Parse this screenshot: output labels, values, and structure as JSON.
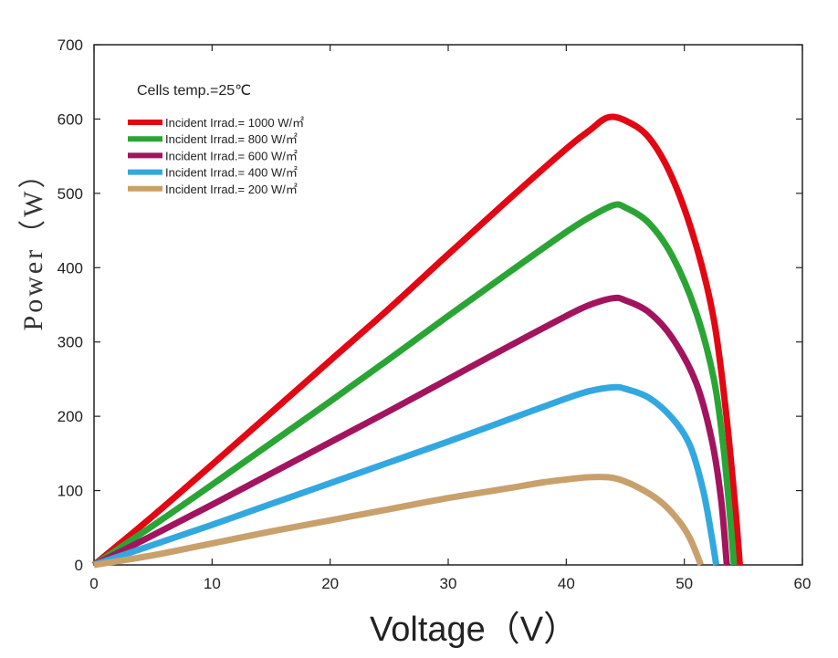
{
  "chart_data": {
    "type": "line",
    "xlabel": "Voltage（V）",
    "ylabel": "Power（W）",
    "xlim": [
      0,
      60
    ],
    "ylim": [
      0,
      700
    ],
    "xticks": [
      0,
      10,
      20,
      30,
      40,
      50,
      60
    ],
    "yticks": [
      0,
      100,
      200,
      300,
      400,
      500,
      600,
      700
    ],
    "grid": false,
    "legend_position": "top-left",
    "annotation": "Cells temp.=25℃",
    "series": [
      {
        "name": "Incident Irrad.= 1000 W/㎡",
        "color": "#e30613",
        "points": [
          [
            0,
            0
          ],
          [
            5,
            66
          ],
          [
            10,
            135
          ],
          [
            15,
            205
          ],
          [
            20,
            275
          ],
          [
            25,
            345
          ],
          [
            30,
            418
          ],
          [
            35,
            490
          ],
          [
            40,
            560
          ],
          [
            42,
            585
          ],
          [
            43.5,
            602
          ],
          [
            45,
            598
          ],
          [
            47,
            575
          ],
          [
            49,
            520
          ],
          [
            51,
            430
          ],
          [
            52.5,
            330
          ],
          [
            53.5,
            210
          ],
          [
            54.3,
            80
          ],
          [
            54.7,
            0
          ]
        ]
      },
      {
        "name": "Incident Irrad.= 800 W/㎡",
        "color": "#2aa535",
        "points": [
          [
            0,
            0
          ],
          [
            5,
            53
          ],
          [
            10,
            108
          ],
          [
            15,
            164
          ],
          [
            20,
            220
          ],
          [
            25,
            277
          ],
          [
            30,
            335
          ],
          [
            35,
            392
          ],
          [
            40,
            448
          ],
          [
            42,
            468
          ],
          [
            44,
            484
          ],
          [
            45,
            481
          ],
          [
            47,
            460
          ],
          [
            49,
            415
          ],
          [
            51,
            340
          ],
          [
            52.5,
            250
          ],
          [
            53.3,
            160
          ],
          [
            53.9,
            60
          ],
          [
            54.2,
            0
          ]
        ]
      },
      {
        "name": "Incident Irrad.= 600 W/㎡",
        "color": "#a3145e",
        "points": [
          [
            0,
            0
          ],
          [
            5,
            40
          ],
          [
            10,
            81
          ],
          [
            15,
            123
          ],
          [
            20,
            165
          ],
          [
            25,
            207
          ],
          [
            30,
            250
          ],
          [
            35,
            293
          ],
          [
            40,
            335
          ],
          [
            42,
            350
          ],
          [
            44,
            359
          ],
          [
            45,
            356
          ],
          [
            47,
            340
          ],
          [
            49,
            305
          ],
          [
            51,
            245
          ],
          [
            52.3,
            170
          ],
          [
            53.1,
            90
          ],
          [
            53.6,
            0
          ]
        ]
      },
      {
        "name": "Incident Irrad.= 400 W/㎡",
        "color": "#33a8e0",
        "points": [
          [
            0,
            0
          ],
          [
            5,
            27
          ],
          [
            10,
            54
          ],
          [
            15,
            82
          ],
          [
            20,
            110
          ],
          [
            25,
            138
          ],
          [
            30,
            166
          ],
          [
            35,
            195
          ],
          [
            40,
            224
          ],
          [
            42,
            234
          ],
          [
            44,
            239
          ],
          [
            45,
            237
          ],
          [
            47,
            225
          ],
          [
            49,
            197
          ],
          [
            50.5,
            160
          ],
          [
            51.6,
            100
          ],
          [
            52.3,
            40
          ],
          [
            52.7,
            0
          ]
        ]
      },
      {
        "name": "Incident Irrad.= 200 W/㎡",
        "color": "#c9a06b",
        "points": [
          [
            0,
            0
          ],
          [
            5,
            13
          ],
          [
            10,
            29
          ],
          [
            15,
            45
          ],
          [
            20,
            60
          ],
          [
            25,
            75
          ],
          [
            30,
            90
          ],
          [
            35,
            103
          ],
          [
            38,
            111
          ],
          [
            40,
            115
          ],
          [
            42,
            118
          ],
          [
            44,
            117
          ],
          [
            46,
            105
          ],
          [
            48,
            85
          ],
          [
            49.5,
            60
          ],
          [
            50.5,
            35
          ],
          [
            51.4,
            0
          ]
        ]
      }
    ]
  }
}
